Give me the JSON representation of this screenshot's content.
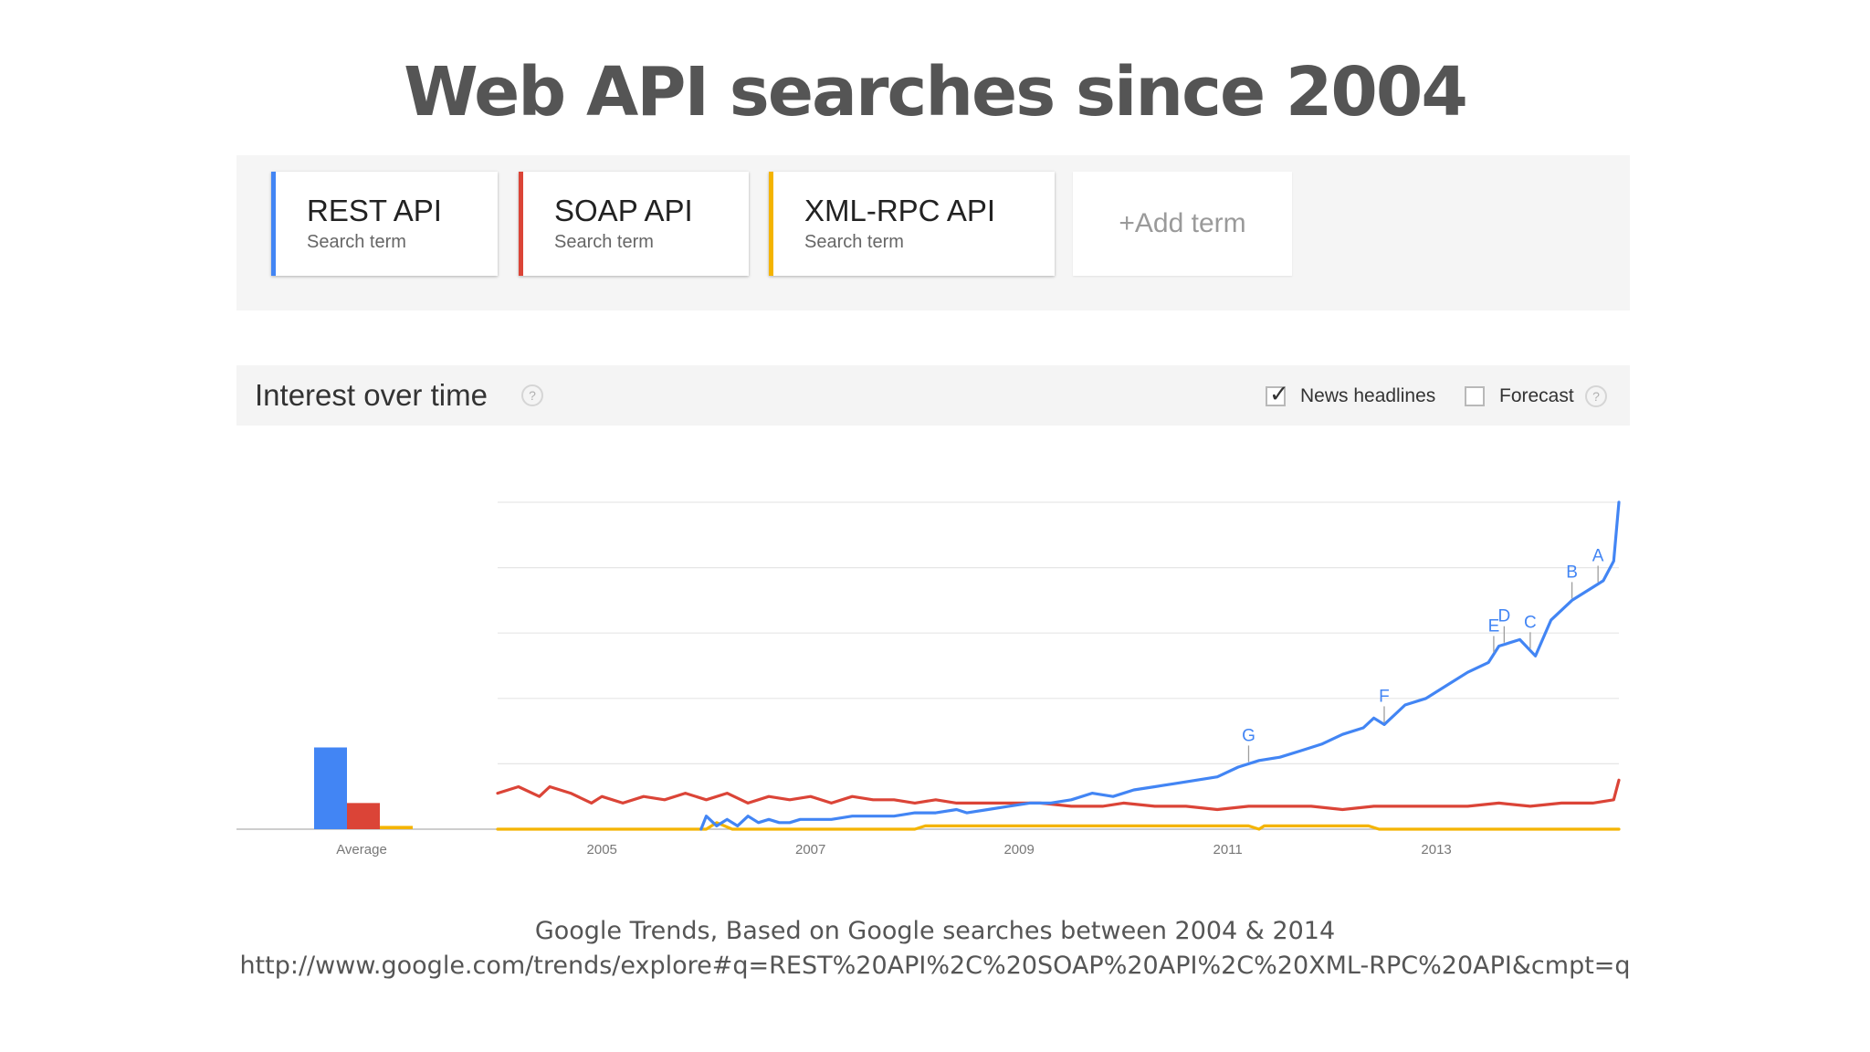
{
  "slide": {
    "title": "Web API searches since 2004",
    "caption_line1": "Google Trends, Based on Google searches between 2004 & 2014",
    "caption_line2": "http://www.google.com/trends/explore#q=REST%20API%2C%20SOAP%20API%2C%20XML-RPC%20API&cmpt=q"
  },
  "terms": [
    {
      "name": "REST API",
      "sub": "Search term",
      "color": "#4285f4"
    },
    {
      "name": "SOAP API",
      "sub": "Search term",
      "color": "#db4437"
    },
    {
      "name": "XML-RPC API",
      "sub": "Search term",
      "color": "#f4b400"
    }
  ],
  "add_term": {
    "plus": "+",
    "label": "Add term"
  },
  "interest": {
    "title": "Interest over time",
    "help_glyph": "?",
    "news_label": "News headlines",
    "news_checked": true,
    "forecast_label": "Forecast",
    "forecast_checked": false
  },
  "chart_data": {
    "type": "line",
    "x_range": [
      2004.0,
      2014.75
    ],
    "ylim": [
      0,
      100
    ],
    "grid": true,
    "x_ticks": [
      "2005",
      "2007",
      "2009",
      "2011",
      "2013"
    ],
    "x_tick_values": [
      2005,
      2007,
      2009,
      2011,
      2013
    ],
    "series": [
      {
        "name": "REST API",
        "color": "#4285f4",
        "average": 25,
        "points": [
          [
            2005.95,
            0
          ],
          [
            2006.0,
            4
          ],
          [
            2006.1,
            1
          ],
          [
            2006.2,
            3
          ],
          [
            2006.3,
            1
          ],
          [
            2006.4,
            4
          ],
          [
            2006.5,
            2
          ],
          [
            2006.6,
            3
          ],
          [
            2006.7,
            2
          ],
          [
            2006.8,
            2
          ],
          [
            2006.9,
            3
          ],
          [
            2007.0,
            3
          ],
          [
            2007.2,
            3
          ],
          [
            2007.4,
            4
          ],
          [
            2007.6,
            4
          ],
          [
            2007.8,
            4
          ],
          [
            2008.0,
            5
          ],
          [
            2008.2,
            5
          ],
          [
            2008.4,
            6
          ],
          [
            2008.5,
            5
          ],
          [
            2008.7,
            6
          ],
          [
            2008.9,
            7
          ],
          [
            2009.1,
            8
          ],
          [
            2009.3,
            8
          ],
          [
            2009.5,
            9
          ],
          [
            2009.7,
            11
          ],
          [
            2009.9,
            10
          ],
          [
            2010.1,
            12
          ],
          [
            2010.3,
            13
          ],
          [
            2010.5,
            14
          ],
          [
            2010.7,
            15
          ],
          [
            2010.9,
            16
          ],
          [
            2011.1,
            19
          ],
          [
            2011.3,
            21
          ],
          [
            2011.5,
            22
          ],
          [
            2011.7,
            24
          ],
          [
            2011.9,
            26
          ],
          [
            2012.1,
            29
          ],
          [
            2012.3,
            31
          ],
          [
            2012.4,
            34
          ],
          [
            2012.5,
            32
          ],
          [
            2012.7,
            38
          ],
          [
            2012.9,
            40
          ],
          [
            2013.1,
            44
          ],
          [
            2013.3,
            48
          ],
          [
            2013.5,
            51
          ],
          [
            2013.6,
            56
          ],
          [
            2013.8,
            58
          ],
          [
            2013.95,
            53
          ],
          [
            2014.1,
            64
          ],
          [
            2014.3,
            70
          ],
          [
            2014.5,
            74
          ],
          [
            2014.6,
            76
          ],
          [
            2014.7,
            82
          ],
          [
            2014.75,
            100
          ]
        ]
      },
      {
        "name": "SOAP API",
        "color": "#db4437",
        "average": 8,
        "points": [
          [
            2004.0,
            11
          ],
          [
            2004.2,
            13
          ],
          [
            2004.4,
            10
          ],
          [
            2004.5,
            13
          ],
          [
            2004.7,
            11
          ],
          [
            2004.9,
            8
          ],
          [
            2005.0,
            10
          ],
          [
            2005.2,
            8
          ],
          [
            2005.4,
            10
          ],
          [
            2005.6,
            9
          ],
          [
            2005.8,
            11
          ],
          [
            2006.0,
            9
          ],
          [
            2006.2,
            11
          ],
          [
            2006.4,
            8
          ],
          [
            2006.6,
            10
          ],
          [
            2006.8,
            9
          ],
          [
            2007.0,
            10
          ],
          [
            2007.2,
            8
          ],
          [
            2007.4,
            10
          ],
          [
            2007.6,
            9
          ],
          [
            2007.8,
            9
          ],
          [
            2008.0,
            8
          ],
          [
            2008.2,
            9
          ],
          [
            2008.4,
            8
          ],
          [
            2008.6,
            8
          ],
          [
            2008.8,
            8
          ],
          [
            2009.0,
            8
          ],
          [
            2009.2,
            8
          ],
          [
            2009.5,
            7
          ],
          [
            2009.8,
            7
          ],
          [
            2010.0,
            8
          ],
          [
            2010.3,
            7
          ],
          [
            2010.6,
            7
          ],
          [
            2010.9,
            6
          ],
          [
            2011.2,
            7
          ],
          [
            2011.5,
            7
          ],
          [
            2011.8,
            7
          ],
          [
            2012.1,
            6
          ],
          [
            2012.4,
            7
          ],
          [
            2012.7,
            7
          ],
          [
            2013.0,
            7
          ],
          [
            2013.3,
            7
          ],
          [
            2013.6,
            8
          ],
          [
            2013.9,
            7
          ],
          [
            2014.2,
            8
          ],
          [
            2014.5,
            8
          ],
          [
            2014.7,
            9
          ],
          [
            2014.75,
            15
          ]
        ]
      },
      {
        "name": "XML-RPC API",
        "color": "#f4b400",
        "average": 1,
        "points": [
          [
            2004.0,
            0
          ],
          [
            2006.0,
            0
          ],
          [
            2006.1,
            2
          ],
          [
            2006.25,
            0
          ],
          [
            2008.0,
            0
          ],
          [
            2008.1,
            1
          ],
          [
            2011.2,
            1
          ],
          [
            2011.3,
            0
          ],
          [
            2011.35,
            1
          ],
          [
            2012.35,
            1
          ],
          [
            2012.45,
            0
          ],
          [
            2014.75,
            0
          ]
        ]
      }
    ],
    "annotations": [
      {
        "label": "G",
        "x": 2011.2,
        "series": "REST API"
      },
      {
        "label": "F",
        "x": 2012.5,
        "series": "REST API"
      },
      {
        "label": "E",
        "x": 2013.55,
        "series": "REST API"
      },
      {
        "label": "D",
        "x": 2013.65,
        "series": "REST API"
      },
      {
        "label": "C",
        "x": 2013.9,
        "series": "REST API"
      },
      {
        "label": "B",
        "x": 2014.3,
        "series": "REST API"
      },
      {
        "label": "A",
        "x": 2014.55,
        "series": "REST API"
      }
    ],
    "average_label": "Average"
  }
}
